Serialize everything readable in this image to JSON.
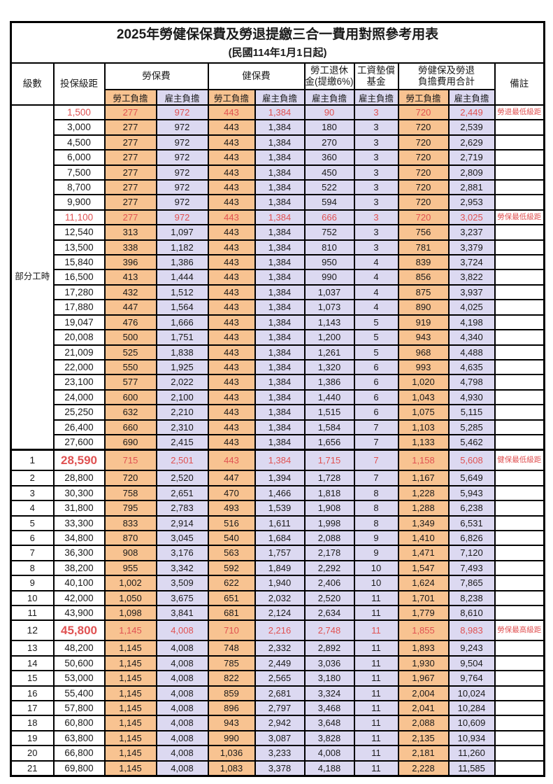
{
  "title": "2025年勞健保保費及勞退提繳三合一費用對照參考用表",
  "subtitle": "(民國114年1月1日起)",
  "colors": {
    "employee_bg": "#f8c391",
    "employer_bg": "#dcd9f1",
    "highlight_red": "#e05252",
    "border": "#000000"
  },
  "header": {
    "level": "級數",
    "bracket": "投保級距",
    "labor_insurance": "勞保費",
    "health_insurance": "健保費",
    "pension_line1": "勞工退休",
    "pension_line2": "金(提繳6%)",
    "wage_fund_line1": "工資墊償",
    "wage_fund_line2": "基金",
    "total_line1": "勞健保及勞退",
    "total_line2": "負擔費用合計",
    "employee_share": "勞工負擔",
    "employer_share": "雇主負擔",
    "remark": "備註"
  },
  "part_time_label": "部分工時",
  "part_time_rowspan": 23,
  "column_kinds": [
    "emp",
    "er",
    "emp",
    "er",
    "er",
    "er",
    "emp",
    "er"
  ],
  "rows": [
    {
      "bracket": "1,500",
      "values": [
        "277",
        "972",
        "443",
        "1,384",
        "90",
        "3",
        "720",
        "2,449"
      ],
      "note": "勞退最低級距",
      "red": true,
      "part_time_start": true
    },
    {
      "bracket": "3,000",
      "values": [
        "277",
        "972",
        "443",
        "1,384",
        "180",
        "3",
        "720",
        "2,539"
      ],
      "note": ""
    },
    {
      "bracket": "4,500",
      "values": [
        "277",
        "972",
        "443",
        "1,384",
        "270",
        "3",
        "720",
        "2,629"
      ],
      "note": ""
    },
    {
      "bracket": "6,000",
      "values": [
        "277",
        "972",
        "443",
        "1,384",
        "360",
        "3",
        "720",
        "2,719"
      ],
      "note": ""
    },
    {
      "bracket": "7,500",
      "values": [
        "277",
        "972",
        "443",
        "1,384",
        "450",
        "3",
        "720",
        "2,809"
      ],
      "note": ""
    },
    {
      "bracket": "8,700",
      "values": [
        "277",
        "972",
        "443",
        "1,384",
        "522",
        "3",
        "720",
        "2,881"
      ],
      "note": ""
    },
    {
      "bracket": "9,900",
      "values": [
        "277",
        "972",
        "443",
        "1,384",
        "594",
        "3",
        "720",
        "2,953"
      ],
      "note": ""
    },
    {
      "bracket": "11,100",
      "values": [
        "277",
        "972",
        "443",
        "1,384",
        "666",
        "3",
        "720",
        "3,025"
      ],
      "note": "勞保最低級距",
      "red": true
    },
    {
      "bracket": "12,540",
      "values": [
        "313",
        "1,097",
        "443",
        "1,384",
        "752",
        "3",
        "756",
        "3,237"
      ],
      "note": ""
    },
    {
      "bracket": "13,500",
      "values": [
        "338",
        "1,182",
        "443",
        "1,384",
        "810",
        "3",
        "781",
        "3,379"
      ],
      "note": ""
    },
    {
      "bracket": "15,840",
      "values": [
        "396",
        "1,386",
        "443",
        "1,384",
        "950",
        "4",
        "839",
        "3,724"
      ],
      "note": ""
    },
    {
      "bracket": "16,500",
      "values": [
        "413",
        "1,444",
        "443",
        "1,384",
        "990",
        "4",
        "856",
        "3,822"
      ],
      "note": ""
    },
    {
      "bracket": "17,280",
      "values": [
        "432",
        "1,512",
        "443",
        "1,384",
        "1,037",
        "4",
        "875",
        "3,937"
      ],
      "note": ""
    },
    {
      "bracket": "17,880",
      "values": [
        "447",
        "1,564",
        "443",
        "1,384",
        "1,073",
        "4",
        "890",
        "4,025"
      ],
      "note": ""
    },
    {
      "bracket": "19,047",
      "values": [
        "476",
        "1,666",
        "443",
        "1,384",
        "1,143",
        "5",
        "919",
        "4,198"
      ],
      "note": ""
    },
    {
      "bracket": "20,008",
      "values": [
        "500",
        "1,751",
        "443",
        "1,384",
        "1,200",
        "5",
        "943",
        "4,340"
      ],
      "note": ""
    },
    {
      "bracket": "21,009",
      "values": [
        "525",
        "1,838",
        "443",
        "1,384",
        "1,261",
        "5",
        "968",
        "4,488"
      ],
      "note": ""
    },
    {
      "bracket": "22,000",
      "values": [
        "550",
        "1,925",
        "443",
        "1,384",
        "1,320",
        "6",
        "993",
        "4,635"
      ],
      "note": ""
    },
    {
      "bracket": "23,100",
      "values": [
        "577",
        "2,022",
        "443",
        "1,384",
        "1,386",
        "6",
        "1,020",
        "4,798"
      ],
      "note": ""
    },
    {
      "bracket": "24,000",
      "values": [
        "600",
        "2,100",
        "443",
        "1,384",
        "1,440",
        "6",
        "1,043",
        "4,930"
      ],
      "note": ""
    },
    {
      "bracket": "25,250",
      "values": [
        "632",
        "2,210",
        "443",
        "1,384",
        "1,515",
        "6",
        "1,075",
        "5,115"
      ],
      "note": ""
    },
    {
      "bracket": "26,400",
      "values": [
        "660",
        "2,310",
        "443",
        "1,384",
        "1,584",
        "7",
        "1,103",
        "5,285"
      ],
      "note": ""
    },
    {
      "bracket": "27,600",
      "values": [
        "690",
        "2,415",
        "443",
        "1,384",
        "1,656",
        "7",
        "1,133",
        "5,462"
      ],
      "note": ""
    },
    {
      "level": "1",
      "bracket": "28,590",
      "values": [
        "715",
        "2,501",
        "443",
        "1,384",
        "1,715",
        "7",
        "1,158",
        "5,608"
      ],
      "note": "健保最低級距",
      "red": true,
      "emph": true,
      "section": true
    },
    {
      "level": "2",
      "bracket": "28,800",
      "values": [
        "720",
        "2,520",
        "447",
        "1,394",
        "1,728",
        "7",
        "1,167",
        "5,649"
      ],
      "note": ""
    },
    {
      "level": "3",
      "bracket": "30,300",
      "values": [
        "758",
        "2,651",
        "470",
        "1,466",
        "1,818",
        "8",
        "1,228",
        "5,943"
      ],
      "note": ""
    },
    {
      "level": "4",
      "bracket": "31,800",
      "values": [
        "795",
        "2,783",
        "493",
        "1,539",
        "1,908",
        "8",
        "1,288",
        "6,238"
      ],
      "note": ""
    },
    {
      "level": "5",
      "bracket": "33,300",
      "values": [
        "833",
        "2,914",
        "516",
        "1,611",
        "1,998",
        "8",
        "1,349",
        "6,531"
      ],
      "note": ""
    },
    {
      "level": "6",
      "bracket": "34,800",
      "values": [
        "870",
        "3,045",
        "540",
        "1,684",
        "2,088",
        "9",
        "1,410",
        "6,826"
      ],
      "note": ""
    },
    {
      "level": "7",
      "bracket": "36,300",
      "values": [
        "908",
        "3,176",
        "563",
        "1,757",
        "2,178",
        "9",
        "1,471",
        "7,120"
      ],
      "note": ""
    },
    {
      "level": "8",
      "bracket": "38,200",
      "values": [
        "955",
        "3,342",
        "592",
        "1,849",
        "2,292",
        "10",
        "1,547",
        "7,493"
      ],
      "note": ""
    },
    {
      "level": "9",
      "bracket": "40,100",
      "values": [
        "1,002",
        "3,509",
        "622",
        "1,940",
        "2,406",
        "10",
        "1,624",
        "7,865"
      ],
      "note": ""
    },
    {
      "level": "10",
      "bracket": "42,000",
      "values": [
        "1,050",
        "3,675",
        "651",
        "2,032",
        "2,520",
        "11",
        "1,701",
        "8,238"
      ],
      "note": ""
    },
    {
      "level": "11",
      "bracket": "43,900",
      "values": [
        "1,098",
        "3,841",
        "681",
        "2,124",
        "2,634",
        "11",
        "1,779",
        "8,610"
      ],
      "note": ""
    },
    {
      "level": "12",
      "bracket": "45,800",
      "values": [
        "1,145",
        "4,008",
        "710",
        "2,216",
        "2,748",
        "11",
        "1,855",
        "8,983"
      ],
      "note": "勞保最高級距",
      "red": true,
      "emph": true
    },
    {
      "level": "13",
      "bracket": "48,200",
      "values": [
        "1,145",
        "4,008",
        "748",
        "2,332",
        "2,892",
        "11",
        "1,893",
        "9,243"
      ],
      "note": ""
    },
    {
      "level": "14",
      "bracket": "50,600",
      "values": [
        "1,145",
        "4,008",
        "785",
        "2,449",
        "3,036",
        "11",
        "1,930",
        "9,504"
      ],
      "note": ""
    },
    {
      "level": "15",
      "bracket": "53,000",
      "values": [
        "1,145",
        "4,008",
        "822",
        "2,565",
        "3,180",
        "11",
        "1,967",
        "9,764"
      ],
      "note": ""
    },
    {
      "level": "16",
      "bracket": "55,400",
      "values": [
        "1,145",
        "4,008",
        "859",
        "2,681",
        "3,324",
        "11",
        "2,004",
        "10,024"
      ],
      "note": ""
    },
    {
      "level": "17",
      "bracket": "57,800",
      "values": [
        "1,145",
        "4,008",
        "896",
        "2,797",
        "3,468",
        "11",
        "2,041",
        "10,284"
      ],
      "note": ""
    },
    {
      "level": "18",
      "bracket": "60,800",
      "values": [
        "1,145",
        "4,008",
        "943",
        "2,942",
        "3,648",
        "11",
        "2,088",
        "10,609"
      ],
      "note": ""
    },
    {
      "level": "19",
      "bracket": "63,800",
      "values": [
        "1,145",
        "4,008",
        "990",
        "3,087",
        "3,828",
        "11",
        "2,135",
        "10,934"
      ],
      "note": ""
    },
    {
      "level": "20",
      "bracket": "66,800",
      "values": [
        "1,145",
        "4,008",
        "1,036",
        "3,233",
        "4,008",
        "11",
        "2,181",
        "11,260"
      ],
      "note": ""
    },
    {
      "level": "21",
      "bracket": "69,800",
      "values": [
        "1,145",
        "4,008",
        "1,083",
        "3,378",
        "4,188",
        "11",
        "2,228",
        "11,585"
      ],
      "note": ""
    }
  ]
}
